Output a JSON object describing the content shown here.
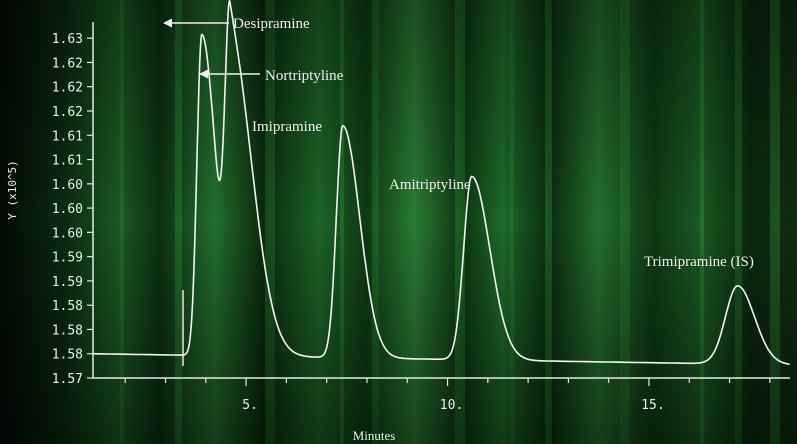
{
  "chart_data": {
    "type": "line",
    "xlabel": "Minutes",
    "ylabel": "Y (x10^5)",
    "xlim": [
      1.2,
      18.5
    ],
    "ylim": [
      1.567,
      1.633
    ],
    "x_ticks": [
      {
        "value": 5,
        "label": "5."
      },
      {
        "value": 10,
        "label": "10."
      },
      {
        "value": 15,
        "label": "15."
      }
    ],
    "y_ticks": [
      {
        "value": 1.63,
        "label": "1.63"
      },
      {
        "value": 1.6255,
        "label": "1.62"
      },
      {
        "value": 1.621,
        "label": "1.62"
      },
      {
        "value": 1.6165,
        "label": "1.62"
      },
      {
        "value": 1.612,
        "label": "1.61"
      },
      {
        "value": 1.6075,
        "label": "1.61"
      },
      {
        "value": 1.603,
        "label": "1.60"
      },
      {
        "value": 1.5985,
        "label": "1.60"
      },
      {
        "value": 1.594,
        "label": "1.60"
      },
      {
        "value": 1.5895,
        "label": "1.59"
      },
      {
        "value": 1.585,
        "label": "1.59"
      },
      {
        "value": 1.5805,
        "label": "1.58"
      },
      {
        "value": 1.576,
        "label": "1.58"
      },
      {
        "value": 1.5715,
        "label": "1.58"
      },
      {
        "value": 1.567,
        "label": "1.57"
      }
    ],
    "baseline": 1.5715,
    "series": [
      {
        "peaks": [
          {
            "label": "Desipramine",
            "retention_min": 3.9,
            "height": 1.631
          },
          {
            "label": "Nortriptyline",
            "retention_min": 4.6,
            "height": 1.629
          },
          {
            "label": "Imipramine",
            "retention_min": 7.4,
            "height": 1.6145
          },
          {
            "label": "Amitriptyline",
            "retention_min": 10.6,
            "height": 1.6055
          },
          {
            "label": "Trimipramine (IS)",
            "retention_min": 17.2,
            "height": 1.586
          }
        ]
      }
    ],
    "grid": false,
    "colors": {
      "background": "#000000",
      "trace": "#f2f2f2",
      "band": "#1f7a2c"
    }
  }
}
